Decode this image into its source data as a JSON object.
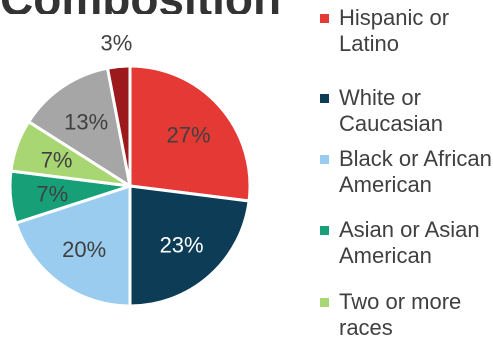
{
  "chart_data": {
    "type": "pie",
    "title": "Composition",
    "categories": [
      "Hispanic or Latino",
      "White or Caucasian",
      "Black or African American",
      "Asian or Asian American",
      "Two or more races",
      "",
      ""
    ],
    "values": [
      27,
      23,
      20,
      7,
      7,
      13,
      3
    ],
    "labels": [
      "27%",
      "23%",
      "20%",
      "7%",
      "7%",
      "13%",
      "3%"
    ],
    "colors": [
      "#E53935",
      "#0D3D56",
      "#99CCEE",
      "#17A078",
      "#A8D672",
      "#A6A6A6",
      "#9C1A1C"
    ],
    "label_colors": [
      "#404040",
      "#ffffff",
      "#404040",
      "#404040",
      "#404040",
      "#404040",
      "#404040"
    ],
    "start_angle_deg": 0,
    "direction": "clockwise",
    "legend_position": "right",
    "legend_entries": [
      {
        "label": "Hispanic or Latino",
        "color": "#E53935"
      },
      {
        "label": "White or Caucasian",
        "color": "#0D3D56"
      },
      {
        "label": "Black or African American",
        "color": "#99CCEE"
      },
      {
        "label": "Asian or Asian American",
        "color": "#17A078"
      },
      {
        "label": "Two or more races",
        "color": "#A8D672"
      }
    ]
  }
}
